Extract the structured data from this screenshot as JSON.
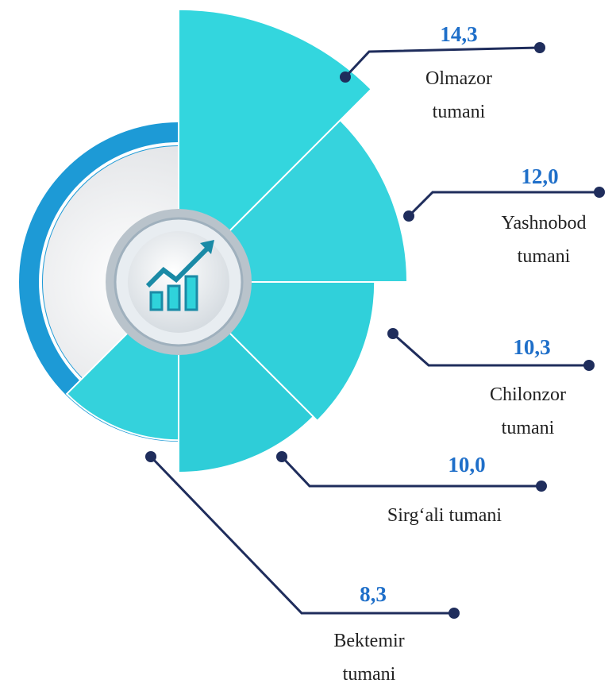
{
  "chart_data": {
    "type": "polar",
    "categories": [
      "Olmazor tumani",
      "Yashnobod tumani",
      "Chilonzor tumani",
      "Sirg‘ali tumani",
      "Bektemir tumani"
    ],
    "values": [
      14.3,
      12.0,
      10.3,
      10.0,
      8.3
    ],
    "value_labels": [
      "14,3",
      "12,0",
      "10,3",
      "10,0",
      "8,3"
    ],
    "color": "#2fd3db"
  }
}
